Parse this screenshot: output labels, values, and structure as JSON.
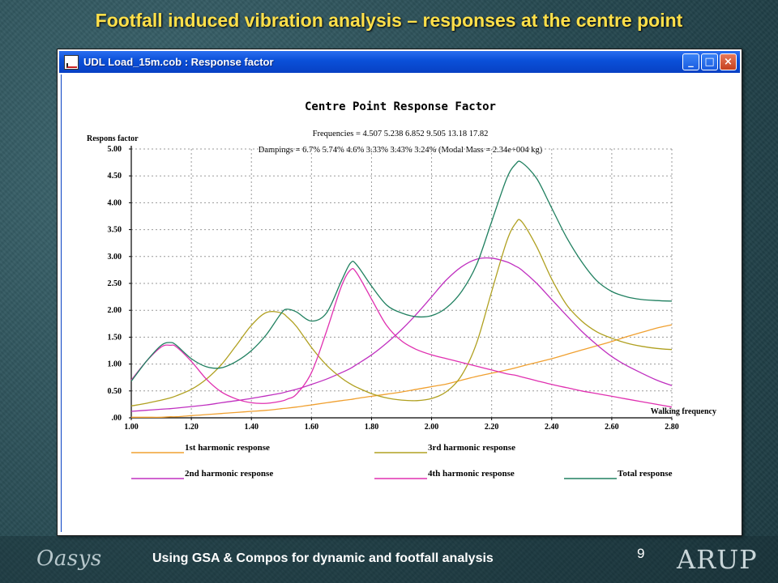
{
  "slide": {
    "title": "Footfall induced vibration analysis – responses at the centre point",
    "footer": "Using GSA & Compos for dynamic and footfall analysis",
    "page_number": "9",
    "logo_left": "Oasys",
    "logo_right": "ARUP"
  },
  "window": {
    "title": "UDL Load_15m.cob : Response factor",
    "buttons": {
      "minimize": "_",
      "maximize": "□",
      "close": "×"
    }
  },
  "chart_data": {
    "type": "line",
    "title": "Centre Point Response Factor",
    "info_line_1": "Frequencies = 4.507  5.238  6.852  9.505  13.18  17.82",
    "info_line_2": "Dampings =  6.7%  5.74%  4.6%  3.33%  3.43%  3.24%  (Modal Mass = 2.34e+004  kg)",
    "ylabel": "Respons factor",
    "xlabel": "Walking frequency",
    "xlim": [
      1.0,
      2.8
    ],
    "ylim": [
      0,
      5
    ],
    "xticks": [
      "1.00",
      "1.20",
      "1.40",
      "1.60",
      "1.80",
      "2.00",
      "2.20",
      "2.40",
      "2.60",
      "2.80"
    ],
    "yticks": [
      ".00",
      "0.50",
      "1.00",
      "1.50",
      "2.00",
      "2.50",
      "3.00",
      "3.50",
      "4.00",
      "4.50",
      "5.00"
    ],
    "grid": true,
    "x": [
      1.0,
      1.05,
      1.1,
      1.13,
      1.15,
      1.2,
      1.25,
      1.3,
      1.35,
      1.4,
      1.45,
      1.5,
      1.52,
      1.55,
      1.6,
      1.65,
      1.7,
      1.73,
      1.75,
      1.8,
      1.85,
      1.9,
      1.95,
      2.0,
      2.05,
      2.1,
      2.15,
      2.2,
      2.25,
      2.28,
      2.3,
      2.35,
      2.4,
      2.45,
      2.5,
      2.55,
      2.6,
      2.65,
      2.7,
      2.75,
      2.8
    ],
    "series": [
      {
        "name": "1st harmonic response",
        "color": "#f0a030",
        "values": [
          0.01,
          0.01,
          0.01,
          0.02,
          0.02,
          0.04,
          0.06,
          0.08,
          0.1,
          0.12,
          0.14,
          0.17,
          0.18,
          0.2,
          0.24,
          0.28,
          0.32,
          0.34,
          0.36,
          0.4,
          0.44,
          0.48,
          0.53,
          0.58,
          0.63,
          0.7,
          0.77,
          0.83,
          0.89,
          0.93,
          0.96,
          1.03,
          1.1,
          1.18,
          1.26,
          1.34,
          1.42,
          1.51,
          1.59,
          1.67,
          1.73
        ]
      },
      {
        "name": "2nd harmonic response",
        "color": "#c030c0",
        "values": [
          0.12,
          0.14,
          0.16,
          0.17,
          0.18,
          0.21,
          0.24,
          0.28,
          0.32,
          0.36,
          0.41,
          0.46,
          0.49,
          0.53,
          0.62,
          0.72,
          0.84,
          0.92,
          0.99,
          1.17,
          1.39,
          1.64,
          1.93,
          2.25,
          2.57,
          2.81,
          2.95,
          2.97,
          2.9,
          2.82,
          2.75,
          2.5,
          2.2,
          1.9,
          1.61,
          1.36,
          1.14,
          0.97,
          0.83,
          0.7,
          0.6
        ]
      },
      {
        "name": "3rd harmonic response",
        "color": "#b0a020",
        "values": [
          0.22,
          0.27,
          0.33,
          0.37,
          0.41,
          0.53,
          0.72,
          0.99,
          1.35,
          1.72,
          1.96,
          1.95,
          1.87,
          1.7,
          1.31,
          0.98,
          0.74,
          0.63,
          0.57,
          0.45,
          0.37,
          0.33,
          0.32,
          0.36,
          0.49,
          0.79,
          1.39,
          2.35,
          3.28,
          3.62,
          3.65,
          3.18,
          2.58,
          2.1,
          1.8,
          1.6,
          1.48,
          1.39,
          1.33,
          1.29,
          1.27
        ]
      },
      {
        "name": "4th harmonic response",
        "color": "#e030b0",
        "values": [
          0.7,
          1.05,
          1.32,
          1.35,
          1.32,
          1.05,
          0.72,
          0.48,
          0.35,
          0.28,
          0.27,
          0.31,
          0.35,
          0.44,
          0.84,
          1.61,
          2.45,
          2.75,
          2.7,
          2.21,
          1.72,
          1.43,
          1.27,
          1.17,
          1.1,
          1.03,
          0.96,
          0.89,
          0.82,
          0.79,
          0.76,
          0.69,
          0.62,
          0.56,
          0.5,
          0.45,
          0.4,
          0.35,
          0.3,
          0.25,
          0.2
        ]
      },
      {
        "name": "Total response",
        "color": "#208060",
        "values": [
          0.68,
          1.05,
          1.35,
          1.4,
          1.35,
          1.1,
          0.95,
          0.93,
          1.05,
          1.25,
          1.55,
          1.95,
          2.02,
          1.97,
          1.8,
          1.95,
          2.55,
          2.88,
          2.85,
          2.45,
          2.1,
          1.95,
          1.88,
          1.9,
          2.05,
          2.35,
          2.85,
          3.65,
          4.45,
          4.72,
          4.75,
          4.45,
          3.9,
          3.35,
          2.9,
          2.55,
          2.35,
          2.25,
          2.2,
          2.18,
          2.17
        ]
      }
    ],
    "legend_order": [
      "1st harmonic response",
      "3rd harmonic response",
      "2nd harmonic response",
      "4th harmonic response",
      "Total response"
    ],
    "legend_placement": "bottom"
  }
}
